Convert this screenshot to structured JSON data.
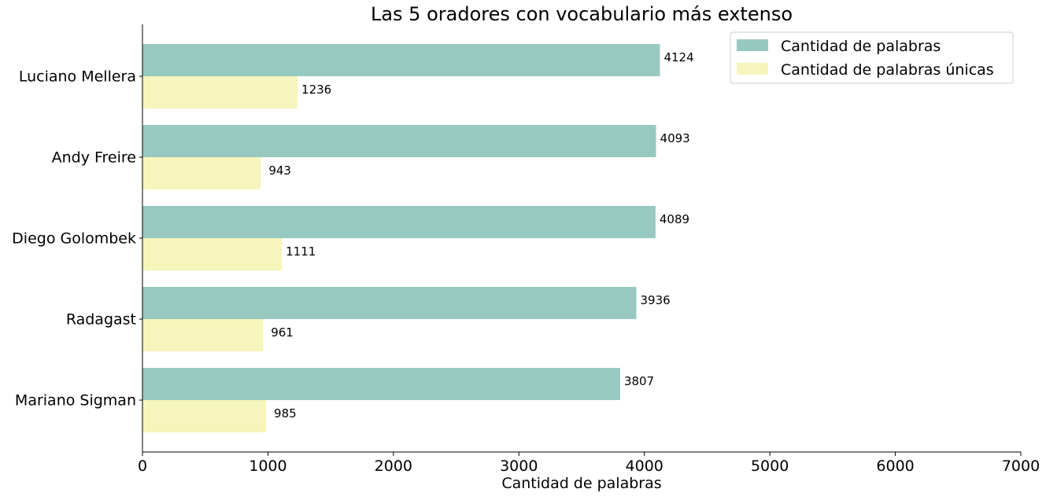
{
  "chart_data": {
    "type": "bar",
    "orientation": "horizontal",
    "title": "Las 5 oradores con vocabulario más extenso",
    "xlabel": "Cantidad de palabras",
    "ylabel": "",
    "categories": [
      "Luciano Mellera",
      "Andy Freire",
      "Diego Golombek",
      "Radagast",
      "Mariano Sigman"
    ],
    "series": [
      {
        "name": "Cantidad de palabras",
        "color": "#98c9c0",
        "values": [
          4124,
          4093,
          4089,
          3936,
          3807
        ]
      },
      {
        "name": "Cantidad de palabras únicas",
        "color": "#f6f5bb",
        "values": [
          1236,
          943,
          1111,
          961,
          985
        ]
      }
    ],
    "xlim": [
      0,
      7000
    ],
    "xticks": [
      0,
      1000,
      2000,
      3000,
      4000,
      5000,
      6000,
      7000
    ],
    "grid": false,
    "legend_position": "top-right",
    "data_labels": true
  }
}
